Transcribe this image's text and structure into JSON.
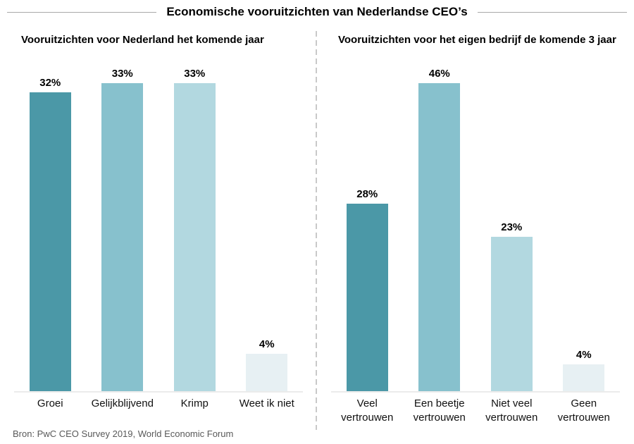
{
  "header": {
    "title": "Economische vooruitzichten van Nederlandse CEO’s"
  },
  "footer": {
    "source": "Bron: PwC CEO Survey 2019, World Economic Forum"
  },
  "colors": {
    "bar_palette": [
      "#4b98a7",
      "#87c1cd",
      "#b2d8e0",
      "#e7f0f3"
    ],
    "divider": "#c9c9c9",
    "baseline": "#ebebeb",
    "header_line": "#a9a9a9",
    "source_text": "#595959",
    "text": "#000000"
  },
  "chart_data": [
    {
      "type": "bar",
      "title": "Vooruitzichten voor Nederland het komende jaar",
      "categories": [
        "Groei",
        "Gelijkblijvend",
        "Krimp",
        "Weet ik niet"
      ],
      "values": [
        32,
        33,
        33,
        4
      ],
      "value_labels": [
        "32%",
        "33%",
        "33%",
        "4%"
      ],
      "unit": "%",
      "ylim": [
        0,
        33
      ],
      "grid": false,
      "legend": "none",
      "note": "bars scaled so the tallest bar fills the plot height; value labels shown above bars"
    },
    {
      "type": "bar",
      "title": "Vooruitzichten voor het eigen bedrijf de komende 3 jaar",
      "categories": [
        "Veel vertrouwen",
        "Een beetje vertrouwen",
        "Niet veel vertrouwen",
        "Geen vertrouwen"
      ],
      "categories_display": [
        "Veel vertrouwen",
        "Een beetje\nvertrouwen",
        "Niet veel\nvertrouwen",
        "Geen\nvertrouwen"
      ],
      "values": [
        28,
        46,
        23,
        4
      ],
      "value_labels": [
        "28%",
        "46%",
        "23%",
        "4%"
      ],
      "unit": "%",
      "ylim": [
        0,
        46
      ],
      "grid": false,
      "legend": "none",
      "note": "bars scaled so the tallest bar fills the plot height; value labels shown above bars"
    }
  ]
}
